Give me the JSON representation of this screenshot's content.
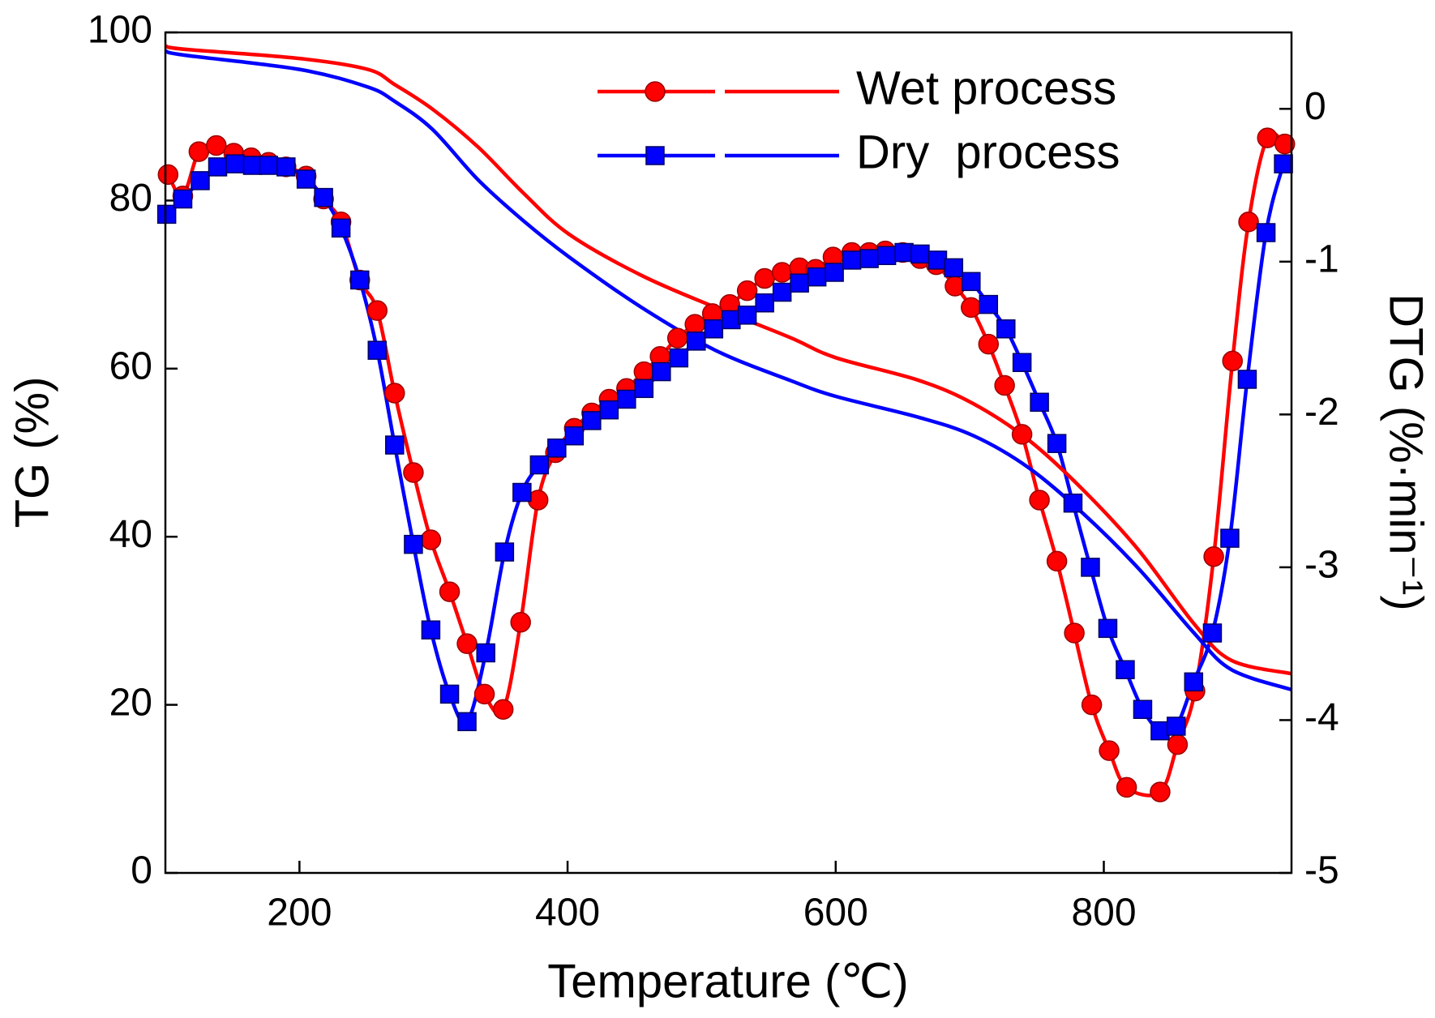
{
  "chart_data": {
    "type": "line",
    "xlabel": "Temperature (℃)",
    "ylabel": "TG (%)",
    "y2label": "DTG (%·min⁻¹)",
    "xlim": [
      100,
      940
    ],
    "ylim": [
      0,
      100
    ],
    "y2lim": [
      -5,
      0.5
    ],
    "xticks": [
      200,
      400,
      600,
      800
    ],
    "yticks": [
      0,
      20,
      40,
      60,
      80,
      100
    ],
    "y2ticks": [
      -5,
      -4,
      -3,
      -2,
      -1,
      0
    ],
    "series": [
      {
        "name": "Wet process",
        "color": "#ff0000",
        "marker": "circle",
        "axis": "y2",
        "x": [
          102,
          113,
          125,
          138,
          151,
          164,
          177,
          190,
          205,
          218,
          231,
          245,
          258,
          271,
          285,
          298,
          312,
          325,
          338,
          352,
          365,
          378,
          391,
          405,
          418,
          431,
          444,
          457,
          469,
          482,
          495,
          508,
          521,
          534,
          547,
          560,
          573,
          585,
          598,
          612,
          625,
          637,
          650,
          663,
          675,
          689,
          701,
          714,
          726,
          739,
          752,
          765,
          778,
          791,
          804,
          817,
          842,
          855,
          868,
          882,
          896,
          908,
          922,
          935
        ],
        "values": [
          -0.43,
          -0.57,
          -0.28,
          -0.24,
          -0.29,
          -0.32,
          -0.35,
          -0.38,
          -0.44,
          -0.59,
          -0.74,
          -1.12,
          -1.32,
          -1.86,
          -2.38,
          -2.82,
          -3.16,
          -3.5,
          -3.83,
          -3.93,
          -3.36,
          -2.56,
          -2.25,
          -2.09,
          -1.99,
          -1.9,
          -1.83,
          -1.72,
          -1.62,
          -1.5,
          -1.41,
          -1.34,
          -1.28,
          -1.19,
          -1.11,
          -1.07,
          -1.04,
          -1.05,
          -0.97,
          -0.94,
          -0.94,
          -0.93,
          -0.94,
          -0.98,
          -1.02,
          -1.16,
          -1.3,
          -1.54,
          -1.81,
          -2.13,
          -2.56,
          -2.96,
          -3.43,
          -3.9,
          -4.2,
          -4.44,
          -4.47,
          -4.16,
          -3.81,
          -2.93,
          -1.65,
          -0.74,
          -0.19,
          -0.23
        ]
      },
      {
        "name": "Dry  process",
        "color": "#0000ff",
        "marker": "square",
        "axis": "y2",
        "x": [
          101,
          113,
          126,
          139,
          152,
          165,
          177,
          190,
          205,
          218,
          231,
          245,
          258,
          271,
          285,
          298,
          312,
          325,
          339,
          353,
          366,
          379,
          392,
          405,
          418,
          431,
          444,
          457,
          470,
          483,
          496,
          509,
          522,
          534,
          547,
          560,
          573,
          586,
          599,
          612,
          625,
          638,
          651,
          663,
          676,
          688,
          701,
          714,
          727,
          739,
          752,
          765,
          777,
          790,
          803,
          816,
          829,
          842,
          854,
          867,
          881,
          894,
          907,
          921,
          934
        ],
        "values": [
          -0.69,
          -0.59,
          -0.47,
          -0.38,
          -0.36,
          -0.37,
          -0.37,
          -0.38,
          -0.46,
          -0.58,
          -0.78,
          -1.12,
          -1.58,
          -2.2,
          -2.85,
          -3.41,
          -3.83,
          -4.01,
          -3.56,
          -2.9,
          -2.51,
          -2.33,
          -2.22,
          -2.14,
          -2.04,
          -1.97,
          -1.9,
          -1.83,
          -1.72,
          -1.63,
          -1.52,
          -1.44,
          -1.38,
          -1.35,
          -1.27,
          -1.2,
          -1.14,
          -1.1,
          -1.07,
          -0.99,
          -0.98,
          -0.96,
          -0.94,
          -0.95,
          -0.99,
          -1.04,
          -1.13,
          -1.28,
          -1.44,
          -1.66,
          -1.92,
          -2.19,
          -2.58,
          -3.0,
          -3.4,
          -3.67,
          -3.93,
          -4.07,
          -4.04,
          -3.75,
          -3.43,
          -2.81,
          -1.77,
          -0.81,
          -0.36
        ]
      },
      {
        "color": "#ff0000",
        "x": [
          100,
          114,
          200,
          251,
          271,
          299,
          333,
          367,
          401,
          455,
          510,
          566,
          600,
          662,
          703,
          744,
          785,
          826,
          867,
          895,
          940
        ],
        "values": [
          98.4,
          98.0,
          96.9,
          95.6,
          93.8,
          90.9,
          86.4,
          80.9,
          76.0,
          71.1,
          67.3,
          63.7,
          61.3,
          58.6,
          55.8,
          51.5,
          45.5,
          38.4,
          29.7,
          25.3,
          23.7
        ]
      },
      {
        "color": "#0000ff",
        "x": [
          100,
          114,
          200,
          251,
          271,
          299,
          333,
          367,
          401,
          455,
          510,
          566,
          600,
          662,
          703,
          744,
          785,
          826,
          867,
          895,
          940
        ],
        "values": [
          97.8,
          97.3,
          95.6,
          93.5,
          91.8,
          88.5,
          82.5,
          77.6,
          73.3,
          67.3,
          62.2,
          58.6,
          56.7,
          54.2,
          52.0,
          48.2,
          42.7,
          36.2,
          28.6,
          24.2,
          21.8
        ]
      }
    ]
  }
}
